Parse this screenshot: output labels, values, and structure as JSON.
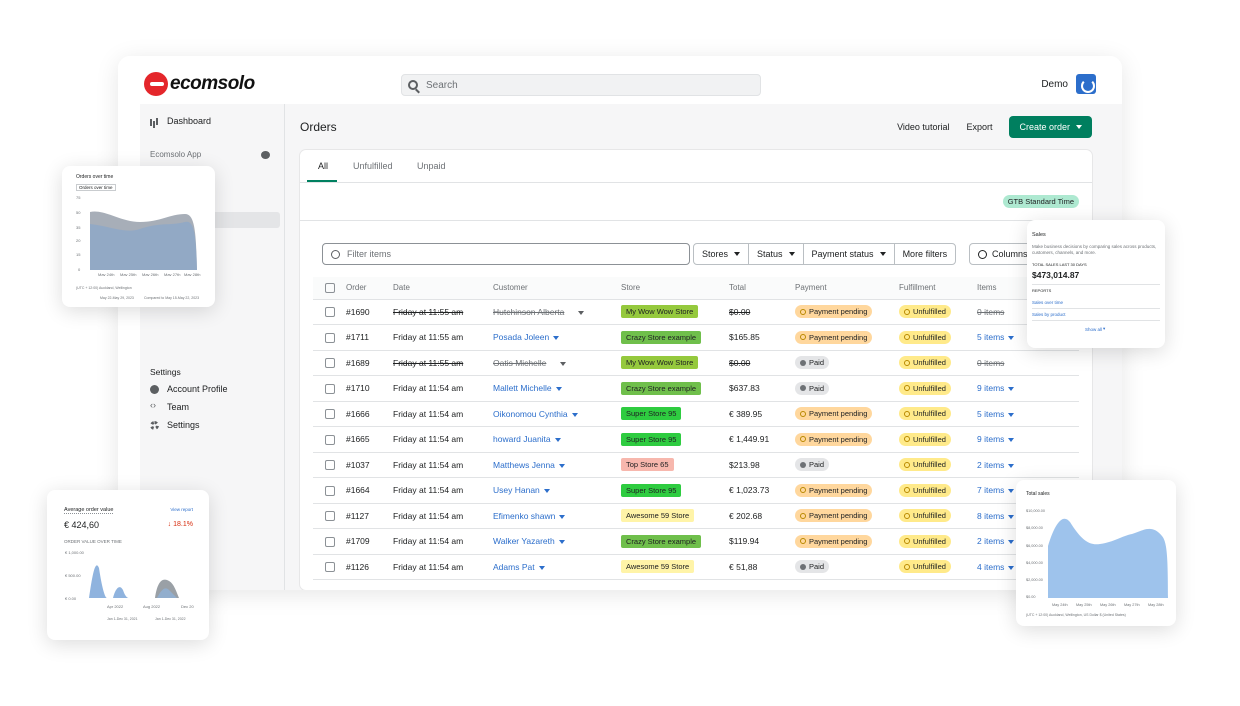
{
  "brand": {
    "name": "ecomsolo"
  },
  "search": {
    "placeholder": "Search"
  },
  "user": {
    "name": "Demo"
  },
  "sidebar": {
    "dashboard": "Dashboard",
    "app": "Ecomsolo App",
    "settings_header": "Settings",
    "account_profile": "Account Profile",
    "team": "Team",
    "settings": "Settings"
  },
  "page": {
    "title": "Orders",
    "video_tutorial": "Video tutorial",
    "export": "Export",
    "create_order": "Create order"
  },
  "tabs": [
    "All",
    "Unfulfilled",
    "Unpaid"
  ],
  "timezone_badge": "GTB Standard Time",
  "filters": {
    "placeholder": "Filter items",
    "buttons": [
      "Stores",
      "Status",
      "Payment status"
    ],
    "more": "More filters",
    "columns": "Columns"
  },
  "table": {
    "headers": [
      "Order",
      "Date",
      "Customer",
      "Store",
      "Total",
      "Payment",
      "Fulfillment",
      "Items"
    ],
    "rows": [
      {
        "order": "#1690",
        "date": "Friday at 11:55 am",
        "customer": "Hutchinson Alberta",
        "store": "My Wow Wow Store",
        "store_color": "#95c93d",
        "total": "$0.00",
        "payment": "Payment pending",
        "fulfillment": "Unfulfilled",
        "items": "0 items",
        "cancelled": true
      },
      {
        "order": "#1711",
        "date": "Friday at 11:55 am",
        "customer": "Posada Joleen",
        "store": "Crazy Store example",
        "store_color": "#6fbf4b",
        "total": "$165.85",
        "payment": "Payment pending",
        "fulfillment": "Unfulfilled",
        "items": "5 items",
        "cancelled": false
      },
      {
        "order": "#1689",
        "date": "Friday at 11:55 am",
        "customer": "Oatis Michelle",
        "store": "My Wow Wow Store",
        "store_color": "#95c93d",
        "total": "$0.00",
        "payment": "Paid",
        "fulfillment": "Unfulfilled",
        "items": "0 items",
        "cancelled": true
      },
      {
        "order": "#1710",
        "date": "Friday at 11:54 am",
        "customer": "Mallett Michelle",
        "store": "Crazy Store example",
        "store_color": "#6fbf4b",
        "total": "$637.83",
        "payment": "Paid",
        "fulfillment": "Unfulfilled",
        "items": "9 items",
        "cancelled": false
      },
      {
        "order": "#1666",
        "date": "Friday at 11:54 am",
        "customer": "Oikonomou Cynthia",
        "store": "Super Store 95",
        "store_color": "#2ecc40",
        "total": "€ 389.95",
        "payment": "Payment pending",
        "fulfillment": "Unfulfilled",
        "items": "5 items",
        "cancelled": false
      },
      {
        "order": "#1665",
        "date": "Friday at 11:54 am",
        "customer": "howard Juanita",
        "store": "Super Store 95",
        "store_color": "#2ecc40",
        "total": "€ 1,449.91",
        "payment": "Payment pending",
        "fulfillment": "Unfulfilled",
        "items": "9 items",
        "cancelled": false
      },
      {
        "order": "#1037",
        "date": "Friday at 11:54 am",
        "customer": "Matthews Jenna",
        "store": "Top Store 65",
        "store_color": "#f7b7ad",
        "total": "$213.98",
        "payment": "Paid",
        "fulfillment": "Unfulfilled",
        "items": "2 items",
        "cancelled": false
      },
      {
        "order": "#1664",
        "date": "Friday at 11:54 am",
        "customer": "Usey Hanan",
        "store": "Super Store 95",
        "store_color": "#2ecc40",
        "total": "€ 1,023.73",
        "payment": "Payment pending",
        "fulfillment": "Unfulfilled",
        "items": "7 items",
        "cancelled": false
      },
      {
        "order": "#1127",
        "date": "Friday at 11:54 am",
        "customer": "Efimenko shawn",
        "store": "Awesome 59 Store",
        "store_color": "#fff4a8",
        "total": "€ 202.68",
        "payment": "Payment pending",
        "fulfillment": "Unfulfilled",
        "items": "8 items",
        "cancelled": false
      },
      {
        "order": "#1709",
        "date": "Friday at 11:54 am",
        "customer": "Walker Yazareth",
        "store": "Crazy Store example",
        "store_color": "#6fbf4b",
        "total": "$119.94",
        "payment": "Payment pending",
        "fulfillment": "Unfulfilled",
        "items": "2 items",
        "cancelled": false
      },
      {
        "order": "#1126",
        "date": "Friday at 11:54 am",
        "customer": "Adams Pat",
        "store": "Awesome 59 Store",
        "store_color": "#fff4a8",
        "total": "€ 51,88",
        "payment": "Paid",
        "fulfillment": "Unfulfilled",
        "items": "4 items",
        "cancelled": false
      }
    ]
  },
  "widgets": {
    "orders_over_time": {
      "title": "Orders over time",
      "select": "Orders over time",
      "yticks": [
        "75",
        "50",
        "35",
        "20",
        "15",
        "0"
      ],
      "xticks": [
        "May 24th",
        "May 25th",
        "May 26th",
        "May 27th",
        "May 28th"
      ],
      "foot": "(UTC + 12:00) Auckland, Wellington",
      "legend_a": "May 22-May 29, 2023",
      "legend_b": "Compared to May 15-May 22, 2023"
    },
    "avg_order": {
      "title": "Average order value",
      "link": "View report",
      "value": "€ 424,60",
      "change": "18.1%",
      "subtitle": "ORDER VALUE OVER TIME",
      "yticks": [
        "€ 1,000.00",
        "€ 500.00",
        "€ 0.00"
      ],
      "xticks": [
        "Apr 2022",
        "Aug 2022",
        "Dec 20"
      ],
      "legend_a": "Jan 1-Dec 31, 2021",
      "legend_b": "Jan 1-Dec 31, 2022"
    },
    "sales": {
      "title": "Sales",
      "desc": "Make business decisions by comparing sales across products, customers, channels, and more.",
      "total_label": "TOTAL SALES LAST 30 DAYS",
      "total": "$473,014.87",
      "reports_label": "REPORTS",
      "link1": "Sales over time",
      "link2": "Sales by product",
      "show_all": "Show all"
    },
    "total_sales": {
      "title": "Total sales",
      "yticks": [
        "$10,000.00",
        "$8,000.00",
        "$6,000.00",
        "$4,000.00",
        "$2,000.00",
        "$0.00"
      ],
      "xticks": [
        "May 24th",
        "May 25th",
        "May 26th",
        "May 27th",
        "May 28th"
      ],
      "foot": "(UTC + 12:00) Auckland, Wellington, US Dollar $ (United States)"
    }
  }
}
